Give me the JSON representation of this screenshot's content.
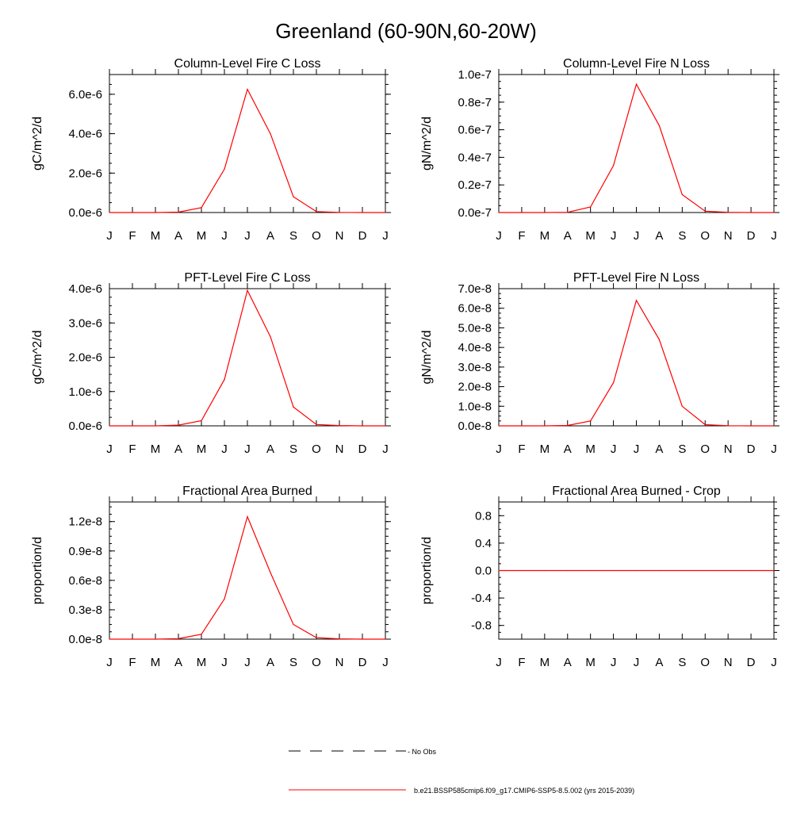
{
  "figure": {
    "title": "Greenland (60-90N,60-20W)",
    "legend": {
      "obs_label": "- No Obs",
      "model_label": "b.e21.BSSP585cmip6.f09_g17.CMIP6-SSP5-8.5.002 (yrs 2015-2039)",
      "obs_color": "#000000",
      "model_color": "#ff0000"
    }
  },
  "chart_data": [
    {
      "type": "line",
      "title": "Column-Level Fire C Loss",
      "ylabel": "gC/m^2/d",
      "xlabel": "",
      "categories": [
        "J",
        "F",
        "M",
        "A",
        "M",
        "J",
        "J",
        "A",
        "S",
        "O",
        "N",
        "D",
        "J"
      ],
      "ylim": [
        0,
        7e-06
      ],
      "yticks": [
        0,
        2e-06,
        4e-06,
        6e-06
      ],
      "ytick_labels": [
        "0.0e-6",
        "2.0e-6",
        "4.0e-6",
        "6.0e-6"
      ],
      "series": [
        {
          "color": "#ff0000",
          "values": [
            0,
            0,
            0,
            2e-08,
            2.5e-07,
            2.2e-06,
            6.25e-06,
            4e-06,
            8e-07,
            5e-08,
            1e-08,
            0,
            0
          ]
        }
      ]
    },
    {
      "type": "line",
      "title": "Column-Level Fire N Loss",
      "ylabel": "gN/m^2/d",
      "xlabel": "",
      "categories": [
        "J",
        "F",
        "M",
        "A",
        "M",
        "J",
        "J",
        "A",
        "S",
        "O",
        "N",
        "D",
        "J"
      ],
      "ylim": [
        0,
        1e-07
      ],
      "yticks": [
        0,
        2e-08,
        4e-08,
        6e-08,
        8e-08,
        1e-07
      ],
      "ytick_labels": [
        "0.0e-7",
        "0.2e-7",
        "0.4e-7",
        "0.6e-7",
        "0.8e-7",
        "1.0e-7"
      ],
      "series": [
        {
          "color": "#ff0000",
          "values": [
            0,
            0,
            0,
            2e-10,
            4e-09,
            3.4e-08,
            9.3e-08,
            6.3e-08,
            1.3e-08,
            1e-09,
            2e-10,
            0,
            0
          ]
        }
      ]
    },
    {
      "type": "line",
      "title": "PFT-Level Fire C Loss",
      "ylabel": "gC/m^2/d",
      "xlabel": "",
      "categories": [
        "J",
        "F",
        "M",
        "A",
        "M",
        "J",
        "J",
        "A",
        "S",
        "O",
        "N",
        "D",
        "J"
      ],
      "ylim": [
        0,
        4e-06
      ],
      "yticks": [
        0,
        1e-06,
        2e-06,
        3e-06,
        4e-06
      ],
      "ytick_labels": [
        "0.0e-6",
        "1.0e-6",
        "2.0e-6",
        "3.0e-6",
        "4.0e-6"
      ],
      "series": [
        {
          "color": "#ff0000",
          "values": [
            0,
            0,
            0,
            2e-08,
            1.5e-07,
            1.35e-06,
            3.95e-06,
            2.6e-06,
            5.5e-07,
            4e-08,
            1e-08,
            0,
            0
          ]
        }
      ]
    },
    {
      "type": "line",
      "title": "PFT-Level Fire N Loss",
      "ylabel": "gN/m^2/d",
      "xlabel": "",
      "categories": [
        "J",
        "F",
        "M",
        "A",
        "M",
        "J",
        "J",
        "A",
        "S",
        "O",
        "N",
        "D",
        "J"
      ],
      "ylim": [
        0,
        7e-08
      ],
      "yticks": [
        0,
        1e-08,
        2e-08,
        3e-08,
        4e-08,
        5e-08,
        6e-08,
        7e-08
      ],
      "ytick_labels": [
        "0.0e-8",
        "1.0e-8",
        "2.0e-8",
        "3.0e-8",
        "4.0e-8",
        "5.0e-8",
        "6.0e-8",
        "7.0e-8"
      ],
      "series": [
        {
          "color": "#ff0000",
          "values": [
            0,
            0,
            0,
            2e-10,
            2.5e-09,
            2.2e-08,
            6.4e-08,
            4.4e-08,
            1e-08,
            6e-10,
            1e-10,
            0,
            0
          ]
        }
      ]
    },
    {
      "type": "line",
      "title": "Fractional Area Burned",
      "ylabel": "proportion/d",
      "xlabel": "",
      "categories": [
        "J",
        "F",
        "M",
        "A",
        "M",
        "J",
        "J",
        "A",
        "S",
        "O",
        "N",
        "D",
        "J"
      ],
      "ylim": [
        0,
        1.4e-08
      ],
      "yticks": [
        0,
        3e-09,
        6e-09,
        9e-09,
        1.2e-08
      ],
      "ytick_labels": [
        "0.0e-8",
        "0.3e-8",
        "0.6e-8",
        "0.9e-8",
        "1.2e-8"
      ],
      "series": [
        {
          "color": "#ff0000",
          "values": [
            0,
            0,
            0,
            5e-11,
            5e-10,
            4.1e-09,
            1.25e-08,
            6.8e-09,
            1.5e-09,
            1.5e-10,
            3e-11,
            0,
            0
          ]
        }
      ]
    },
    {
      "type": "line",
      "title": "Fractional Area Burned - Crop",
      "ylabel": "proportion/d",
      "xlabel": "",
      "categories": [
        "J",
        "F",
        "M",
        "A",
        "M",
        "J",
        "J",
        "A",
        "S",
        "O",
        "N",
        "D",
        "J"
      ],
      "ylim": [
        -1.0,
        1.0
      ],
      "yticks": [
        -0.8,
        -0.4,
        0,
        0.4,
        0.8
      ],
      "ytick_labels": [
        "-0.8",
        "-0.4",
        "0.0",
        "0.4",
        "0.8"
      ],
      "series": [
        {
          "color": "#ff0000",
          "values": [
            0,
            0,
            0,
            0,
            0,
            0,
            0,
            0,
            0,
            0,
            0,
            0,
            0
          ]
        }
      ]
    }
  ]
}
